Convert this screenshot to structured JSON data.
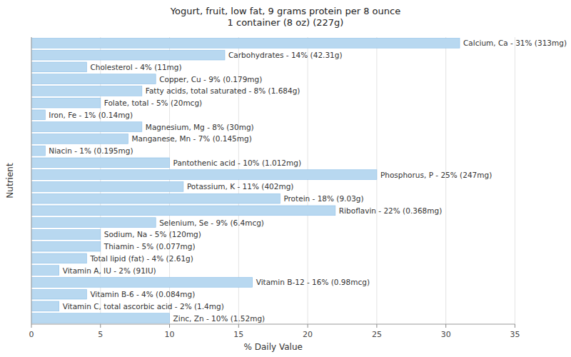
{
  "chart_data": {
    "type": "bar",
    "orientation": "horizontal",
    "title": "Yogurt, fruit, low fat, 9 grams protein per 8 ounce\n1 container (8 oz) (227g)",
    "x_label": "% Daily Value",
    "y_label": "Nutrient",
    "categories": [
      "Calcium, Ca - 31% (313mg)",
      "Carbohydrates - 14% (42.31g)",
      "Cholesterol - 4% (11mg)",
      "Copper, Cu - 9% (0.179mg)",
      "Fatty acids, total saturated - 8% (1.684g)",
      "Folate, total - 5% (20mcg)",
      "Iron, Fe - 1% (0.14mg)",
      "Magnesium, Mg - 8% (30mg)",
      "Manganese, Mn - 7% (0.145mg)",
      "Niacin - 1% (0.195mg)",
      "Pantothenic acid - 10% (1.012mg)",
      "Phosphorus, P - 25% (247mg)",
      "Potassium, K - 11% (402mg)",
      "Protein - 18% (9.03g)",
      "Riboflavin - 22% (0.368mg)",
      "Selenium, Se - 9% (6.4mcg)",
      "Sodium, Na - 5% (120mg)",
      "Thiamin - 5% (0.077mg)",
      "Total lipid (fat) - 4% (2.61g)",
      "Vitamin A, IU - 2% (91IU)",
      "Vitamin B-12 - 16% (0.98mcg)",
      "Vitamin B-6 - 4% (0.084mg)",
      "Vitamin C, total ascorbic acid - 2% (1.4mg)",
      "Zinc, Zn - 10% (1.52mg)"
    ],
    "values": [
      31,
      14,
      4,
      9,
      8,
      5,
      1,
      8,
      7,
      1,
      10,
      25,
      11,
      18,
      22,
      9,
      5,
      5,
      4,
      2,
      16,
      4,
      2,
      10
    ],
    "color": "#b8d8f0",
    "xlim": [
      0,
      35
    ],
    "xticks": [
      0,
      5,
      10,
      15,
      20,
      25,
      30,
      35
    ],
    "grid": true,
    "tick_labels": "x"
  }
}
